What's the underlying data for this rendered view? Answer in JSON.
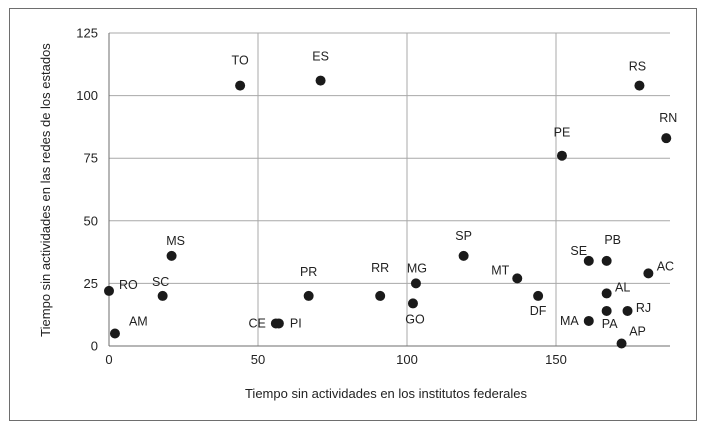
{
  "chart_data": {
    "type": "scatter",
    "xlabel": "Tiempo sin actividades en los institutos federales",
    "ylabel": "Tiempo sin actividades en las redes de los estados",
    "xlim": [
      0,
      190
    ],
    "ylim": [
      0,
      125
    ],
    "xticks": [
      0,
      50,
      100,
      150
    ],
    "yticks": [
      0,
      25,
      50,
      75,
      100,
      125
    ],
    "grid": true,
    "marker_color": "#1a1a1a",
    "points": [
      {
        "label": "RO",
        "x": 0,
        "y": 22
      },
      {
        "label": "AM",
        "x": 2,
        "y": 5
      },
      {
        "label": "SC",
        "x": 18,
        "y": 20
      },
      {
        "label": "MS",
        "x": 21,
        "y": 36
      },
      {
        "label": "TO",
        "x": 44,
        "y": 104
      },
      {
        "label": "CE",
        "x": 56,
        "y": 9
      },
      {
        "label": "PI",
        "x": 57,
        "y": 9
      },
      {
        "label": "ES",
        "x": 71,
        "y": 106
      },
      {
        "label": "PR",
        "x": 67,
        "y": 20
      },
      {
        "label": "RR",
        "x": 91,
        "y": 20
      },
      {
        "label": "MG",
        "x": 103,
        "y": 25
      },
      {
        "label": "GO",
        "x": 102,
        "y": 17
      },
      {
        "label": "SP",
        "x": 119,
        "y": 36
      },
      {
        "label": "MT",
        "x": 137,
        "y": 27
      },
      {
        "label": "DF",
        "x": 144,
        "y": 20
      },
      {
        "label": "PE",
        "x": 152,
        "y": 76
      },
      {
        "label": "SE",
        "x": 161,
        "y": 34
      },
      {
        "label": "PB",
        "x": 167,
        "y": 34
      },
      {
        "label": "MA",
        "x": 161,
        "y": 10
      },
      {
        "label": "AL",
        "x": 167,
        "y": 21
      },
      {
        "label": "PA",
        "x": 167,
        "y": 14
      },
      {
        "label": "RJ",
        "x": 174,
        "y": 14
      },
      {
        "label": "AP",
        "x": 172,
        "y": 1
      },
      {
        "label": "AC",
        "x": 181,
        "y": 29
      },
      {
        "label": "RS",
        "x": 178,
        "y": 104
      },
      {
        "label": "RN",
        "x": 187,
        "y": 83
      }
    ]
  }
}
